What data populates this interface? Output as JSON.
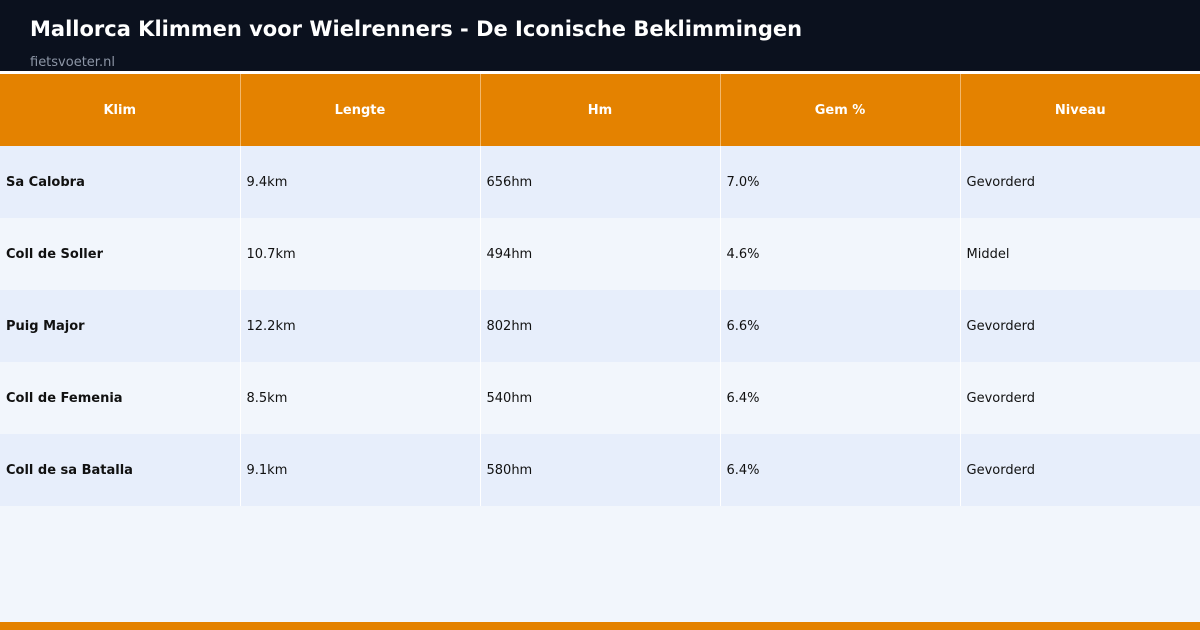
{
  "header": {
    "title": "Mallorca Klimmen voor Wielrenners - De Iconische Beklimmingen",
    "source": "fietsvoeter.nl"
  },
  "colors": {
    "header_bg": "#0b111e",
    "accent": "#e48200",
    "row_odd": "#e7eefb",
    "row_even": "#f2f6fc"
  },
  "chart_data": {
    "type": "table",
    "title": "Mallorca Klimmen voor Wielrenners - De Iconische Beklimmingen",
    "columns": [
      "Klim",
      "Lengte",
      "Hm",
      "Gem %",
      "Niveau"
    ],
    "rows": [
      [
        "Sa Calobra",
        "9.4km",
        "656hm",
        "7.0%",
        "Gevorderd"
      ],
      [
        "Coll de Soller",
        "10.7km",
        "494hm",
        "4.6%",
        "Middel"
      ],
      [
        "Puig Major",
        "12.2km",
        "802hm",
        "6.6%",
        "Gevorderd"
      ],
      [
        "Coll de Femenia",
        "8.5km",
        "540hm",
        "6.4%",
        "Gevorderd"
      ],
      [
        "Coll de sa Batalla",
        "9.1km",
        "580hm",
        "6.4%",
        "Gevorderd"
      ]
    ]
  }
}
